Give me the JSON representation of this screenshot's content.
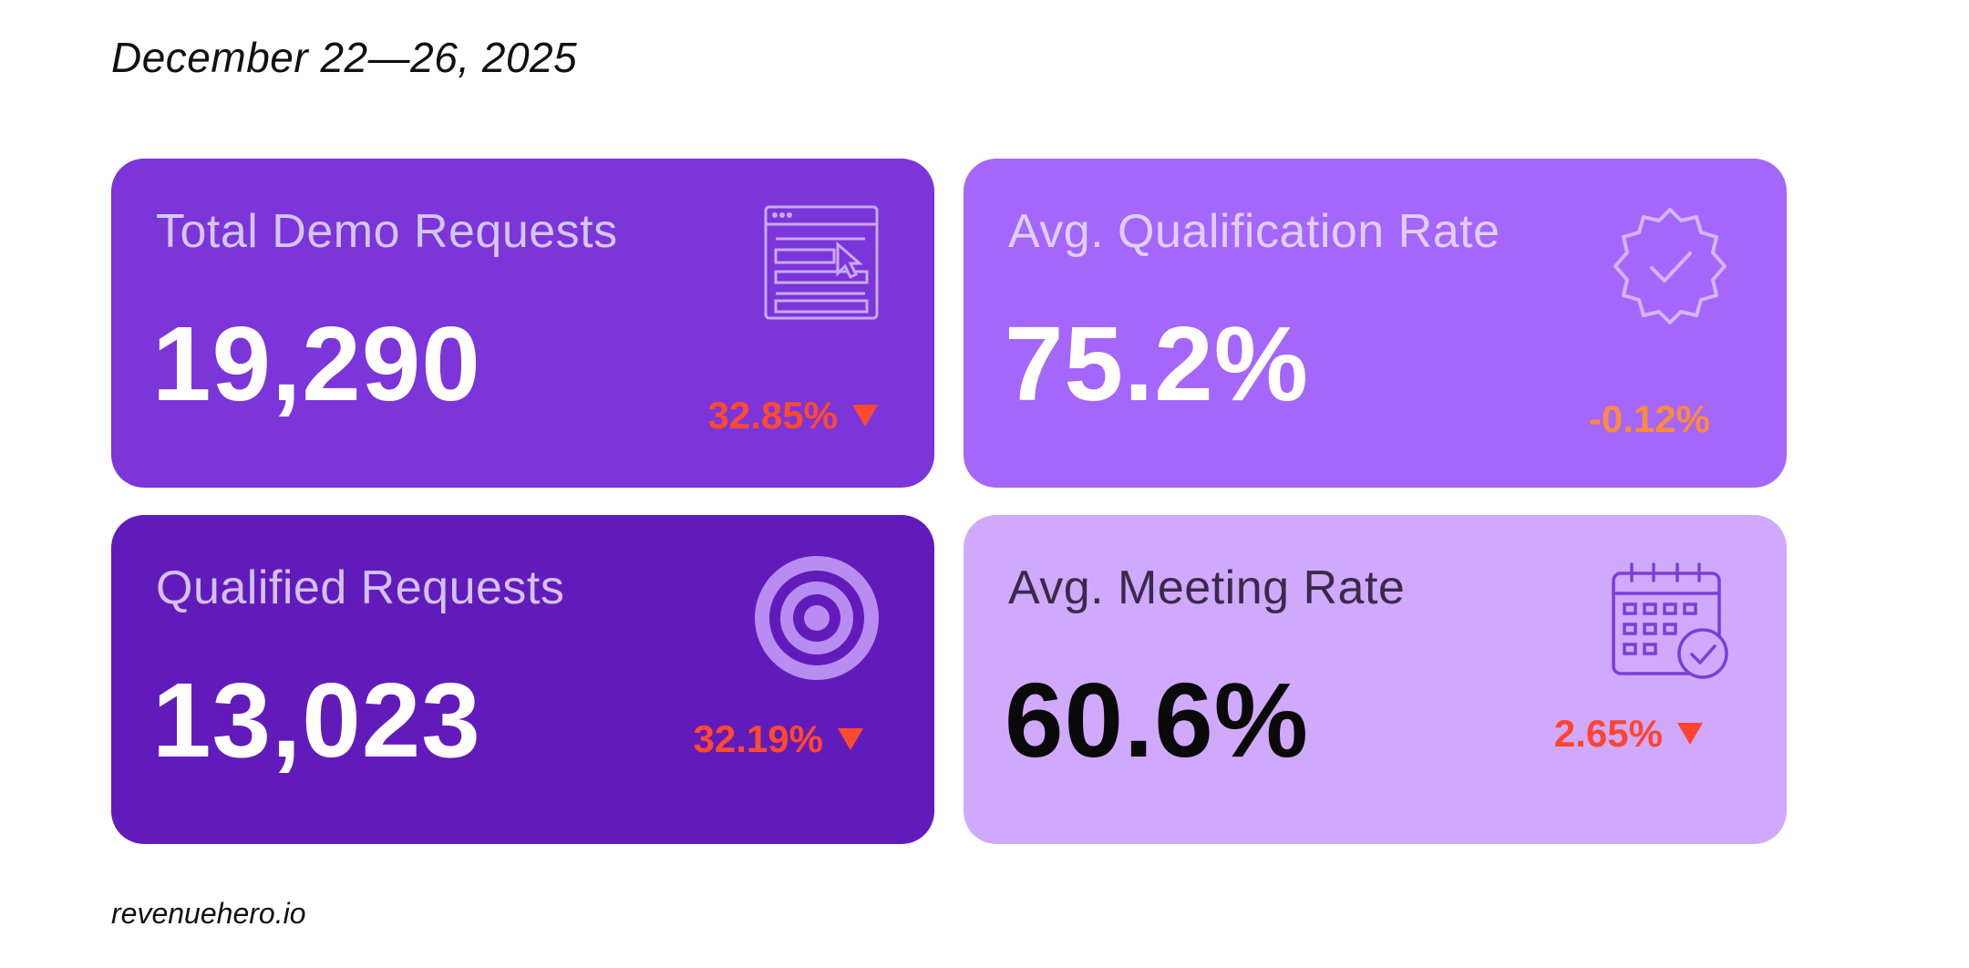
{
  "header": {
    "date_range": "December 22—26, 2025"
  },
  "cards": [
    {
      "label": "Total Demo Requests",
      "value": "19,290",
      "change": "32.85%",
      "trend": "down",
      "icon": "web-form-cursor-icon",
      "bg_color": "#7b35d9",
      "change_color": "#ff4a2e"
    },
    {
      "label": "Avg. Qualification Rate",
      "value": "75.2%",
      "change": "-0.12%",
      "trend": "none",
      "icon": "verified-badge-icon",
      "bg_color": "#a566fb",
      "change_color": "#ff8a3d"
    },
    {
      "label": "Qualified Requests",
      "value": "13,023",
      "change": "32.19%",
      "trend": "down",
      "icon": "target-icon",
      "bg_color": "#621bbb",
      "change_color": "#ff4a2e"
    },
    {
      "label": "Avg. Meeting Rate",
      "value": "60.6%",
      "change": "2.65%",
      "trend": "down",
      "icon": "calendar-check-icon",
      "bg_color": "#d0a9fd",
      "change_color": "#ff4530"
    }
  ],
  "footer": {
    "source": "revenuehero.io"
  }
}
